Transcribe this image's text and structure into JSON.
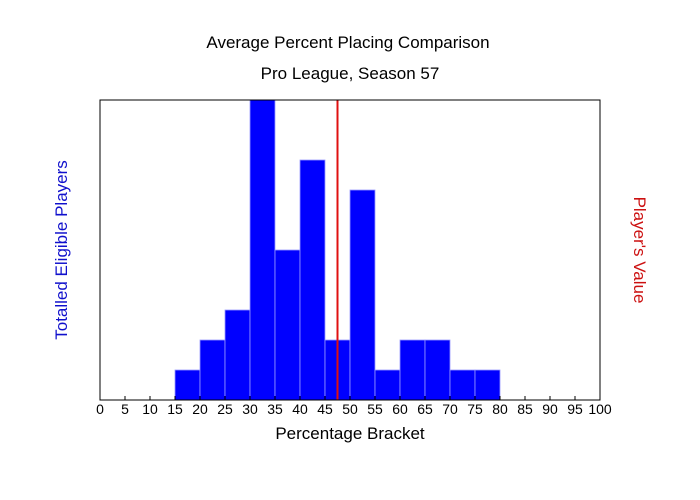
{
  "chart_data": {
    "type": "bar",
    "title": "Average Percent Placing Comparison",
    "subtitle": "Pro League, Season 57",
    "xlabel": "Percentage Bracket",
    "ylabel": "Totalled Eligible Players",
    "y2label": "Player's Value",
    "xlim": [
      0,
      100
    ],
    "ylim": [
      0,
      10
    ],
    "x_ticks": [
      "0",
      "5",
      "10",
      "15",
      "20",
      "25",
      "30",
      "35",
      "40",
      "45",
      "50",
      "55",
      "60",
      "65",
      "70",
      "75",
      "80",
      "85",
      "90",
      "95",
      "100"
    ],
    "bin_width": 5,
    "bins": [
      {
        "start": 15,
        "value": 1
      },
      {
        "start": 20,
        "value": 2
      },
      {
        "start": 25,
        "value": 3
      },
      {
        "start": 30,
        "value": 10
      },
      {
        "start": 35,
        "value": 5
      },
      {
        "start": 40,
        "value": 8
      },
      {
        "start": 45,
        "value": 2
      },
      {
        "start": 50,
        "value": 7
      },
      {
        "start": 55,
        "value": 1
      },
      {
        "start": 60,
        "value": 2
      },
      {
        "start": 65,
        "value": 2
      },
      {
        "start": 70,
        "value": 1
      },
      {
        "start": 75,
        "value": 1
      }
    ],
    "player_value": 47.5,
    "grid": false,
    "colors": {
      "bar": "#0000ff",
      "bar_edge": "#9a9aff",
      "player_line": "#e01010",
      "ylabel": "#1010cc",
      "y2label": "#cc1010"
    }
  }
}
